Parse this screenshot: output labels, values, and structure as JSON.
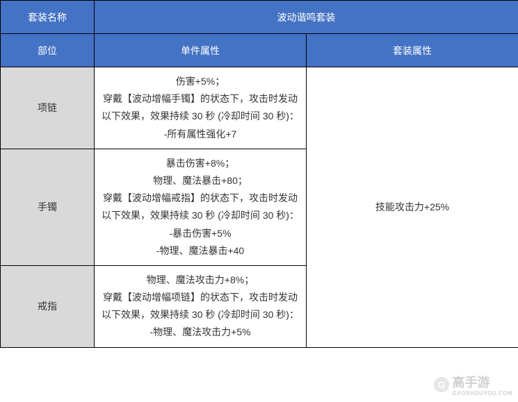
{
  "table": {
    "header1": {
      "col1": "套装名称",
      "col2_span": "波动谐鸣套装"
    },
    "header2": {
      "col1": "部位",
      "col2": "单件属性",
      "col3": "套装属性"
    },
    "rows": [
      {
        "slot": "项链",
        "attr": "伤害+5%；\n穿戴【波动增幅手镯】的状态下，攻击时发动以下效果，效果持续 30 秒 (冷却时间 30 秒)：\n-所有属性强化+7"
      },
      {
        "slot": "手镯",
        "attr": "暴击伤害+8%；\n物理、魔法暴击+80；\n穿戴【波动增幅戒指】的状态下，攻击时发动以下效果，效果持续 30 秒 (冷却时间 30 秒)：\n-暴击伤害+5%\n-物理、魔法暴击+40"
      },
      {
        "slot": "戒指",
        "attr": "物理、魔法攻击力+8%；\n穿戴【波动增幅项链】的状态下，攻击时发动以下效果，效果持续 30 秒 (冷却时间 30 秒)：\n-物理、魔法攻击力+5%"
      }
    ],
    "set_bonus": "技能攻击力+25%",
    "colors": {
      "header_bg": "#4472c4",
      "header_text": "#ffffff",
      "slot_bg": "#d9d9d9",
      "border": "#000000",
      "text": "#333333"
    }
  },
  "watermark": {
    "logo_letter": "G",
    "text": "高手游",
    "subtext": "GAOSHOUYOU.COM"
  }
}
